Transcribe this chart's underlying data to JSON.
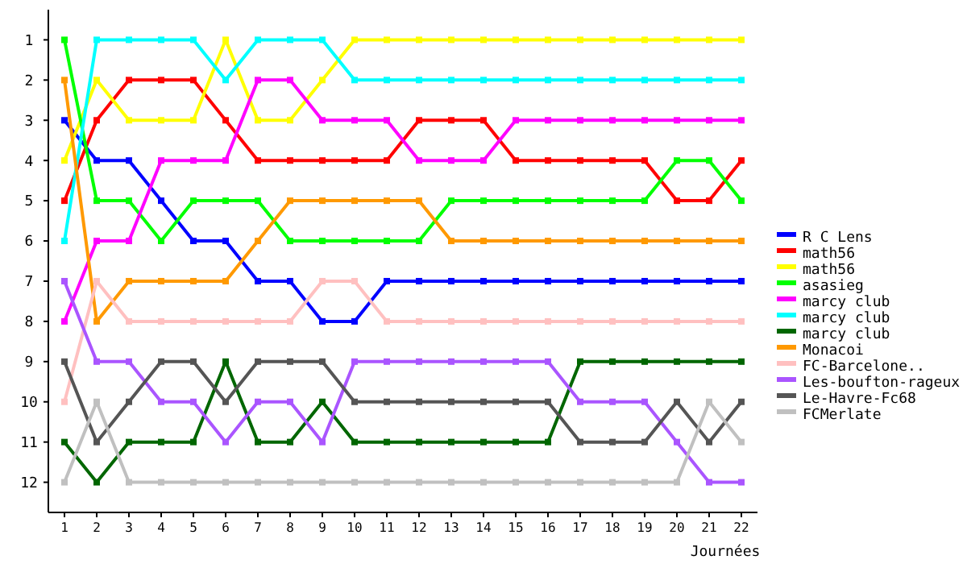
{
  "chart_data": {
    "type": "line",
    "xlabel": "Journées",
    "x": [
      1,
      2,
      3,
      4,
      5,
      6,
      7,
      8,
      9,
      10,
      11,
      12,
      13,
      14,
      15,
      16,
      17,
      18,
      19,
      20,
      21,
      22
    ],
    "xlim": [
      0.5,
      22.5
    ],
    "xticks": [
      1,
      2,
      3,
      4,
      5,
      6,
      7,
      8,
      9,
      10,
      11,
      12,
      13,
      14,
      15,
      16,
      17,
      18,
      19,
      20,
      21,
      22
    ],
    "ylim": [
      12.75,
      0.25
    ],
    "yticks": [
      1,
      2,
      3,
      4,
      5,
      6,
      7,
      8,
      9,
      10,
      11,
      12
    ],
    "marker": "square",
    "legend": "right",
    "grid": false,
    "series": [
      {
        "name": "R C Lens",
        "color": "#0000ff",
        "values": [
          3,
          4,
          4,
          5,
          6,
          6,
          7,
          7,
          8,
          8,
          7,
          7,
          7,
          7,
          7,
          7,
          7,
          7,
          7,
          7,
          7,
          7
        ]
      },
      {
        "name": "math56",
        "color": "#ff0000",
        "values": [
          5,
          3,
          2,
          2,
          2,
          3,
          4,
          4,
          4,
          4,
          4,
          3,
          3,
          3,
          4,
          4,
          4,
          4,
          4,
          5,
          5,
          4
        ]
      },
      {
        "name": "math56",
        "color": "#ffff00",
        "values": [
          4,
          2,
          3,
          3,
          3,
          1,
          3,
          3,
          2,
          1,
          1,
          1,
          1,
          1,
          1,
          1,
          1,
          1,
          1,
          1,
          1,
          1
        ]
      },
      {
        "name": "asasieg",
        "color": "#00ff00",
        "values": [
          1,
          5,
          5,
          6,
          5,
          5,
          5,
          6,
          6,
          6,
          6,
          6,
          5,
          5,
          5,
          5,
          5,
          5,
          5,
          4,
          4,
          5
        ]
      },
      {
        "name": "marcy club",
        "color": "#ff00ff",
        "values": [
          8,
          6,
          6,
          4,
          4,
          4,
          2,
          2,
          3,
          3,
          3,
          4,
          4,
          4,
          3,
          3,
          3,
          3,
          3,
          3,
          3,
          3
        ]
      },
      {
        "name": "marcy club",
        "color": "#00ffff",
        "values": [
          6,
          1,
          1,
          1,
          1,
          2,
          1,
          1,
          1,
          2,
          2,
          2,
          2,
          2,
          2,
          2,
          2,
          2,
          2,
          2,
          2,
          2
        ]
      },
      {
        "name": "marcy club",
        "color": "#006600",
        "values": [
          11,
          12,
          11,
          11,
          11,
          9,
          11,
          11,
          10,
          11,
          11,
          11,
          11,
          11,
          11,
          11,
          9,
          9,
          9,
          9,
          9,
          9
        ]
      },
      {
        "name": "Monacoi",
        "color": "#ff9900",
        "values": [
          2,
          8,
          7,
          7,
          7,
          7,
          6,
          5,
          5,
          5,
          5,
          5,
          6,
          6,
          6,
          6,
          6,
          6,
          6,
          6,
          6,
          6
        ]
      },
      {
        "name": "FC-Barcelone..",
        "color": "#ffc0c0",
        "values": [
          10,
          7,
          8,
          8,
          8,
          8,
          8,
          8,
          7,
          7,
          8,
          8,
          8,
          8,
          8,
          8,
          8,
          8,
          8,
          8,
          8,
          8
        ]
      },
      {
        "name": "Les-boufton-rageux",
        "color": "#aa55ff",
        "values": [
          7,
          9,
          9,
          10,
          10,
          11,
          10,
          10,
          11,
          9,
          9,
          9,
          9,
          9,
          9,
          9,
          10,
          10,
          10,
          11,
          12,
          12
        ]
      },
      {
        "name": "Le-Havre-Fc68",
        "color": "#555555",
        "values": [
          9,
          11,
          10,
          9,
          9,
          10,
          9,
          9,
          9,
          10,
          10,
          10,
          10,
          10,
          10,
          10,
          11,
          11,
          11,
          10,
          11,
          10
        ]
      },
      {
        "name": "FCMerlate",
        "color": "#c0c0c0",
        "values": [
          12,
          10,
          12,
          12,
          12,
          12,
          12,
          12,
          12,
          12,
          12,
          12,
          12,
          12,
          12,
          12,
          12,
          12,
          12,
          12,
          10,
          11
        ]
      }
    ]
  }
}
